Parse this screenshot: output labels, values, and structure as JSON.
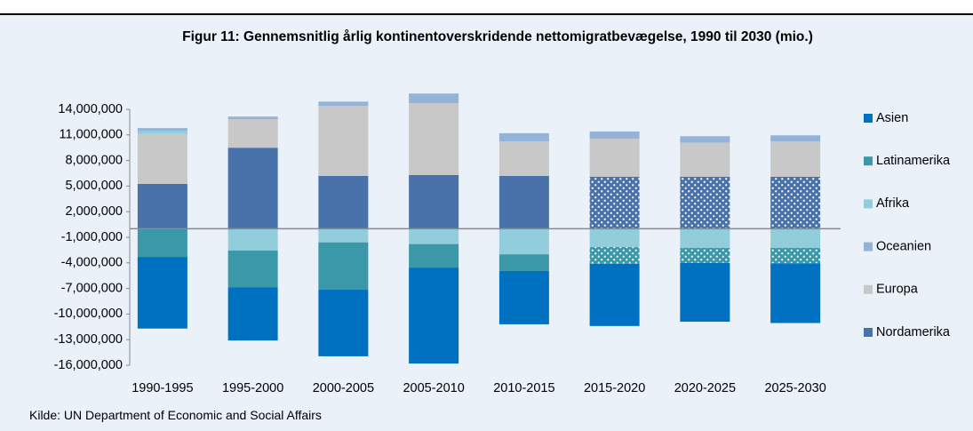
{
  "chart_data": {
    "type": "stacked_bar",
    "title": "Figur 11: Gennemsnitlig årlig kontinentoverskridende nettomigratbevægelse, 1990 til 2030 (mio.)",
    "source": "Kilde: UN Department of Economic and Social Affairs",
    "categories": [
      "1990-1995",
      "1995-2000",
      "2000-2005",
      "2005-2010",
      "2010-2015",
      "2015-2020",
      "2020-2025",
      "2025-2030"
    ],
    "series": [
      {
        "name": "Asien",
        "color": "#0070c0",
        "values": [
          -8400000,
          -6250000,
          -7800000,
          -11250000,
          -6250000,
          -7300000,
          -6900000,
          -7000000
        ]
      },
      {
        "name": "Latinamerika",
        "color": "#3b98a8",
        "pattern": "dots",
        "values": [
          -3300000,
          -4300000,
          -5550000,
          -2750000,
          -1950000,
          -1950000,
          -1750000,
          -1800000
        ]
      },
      {
        "name": "Afrika",
        "color": "#92cddc",
        "values": [
          400000,
          -2550000,
          -1600000,
          -1800000,
          -3000000,
          -2150000,
          -2250000,
          -2250000
        ]
      },
      {
        "name": "Oceanien",
        "color": "#95b3d7",
        "values": [
          300000,
          300000,
          500000,
          1150000,
          950000,
          850000,
          750000,
          700000
        ]
      },
      {
        "name": "Europa",
        "color": "#c8c8c8",
        "values": [
          5850000,
          3350000,
          8200000,
          8400000,
          4050000,
          4450000,
          4000000,
          4150000
        ]
      },
      {
        "name": "Nordamerika",
        "color": "#4a72aa",
        "pattern": "dots",
        "values": [
          5250000,
          9500000,
          6200000,
          6300000,
          6200000,
          6100000,
          6100000,
          6100000
        ]
      }
    ],
    "pattern_from": 5,
    "ylim": [
      -16000000,
      17000000
    ],
    "yticks": [
      {
        "value": -16000000,
        "label": "-16,000,000"
      },
      {
        "value": -13000000,
        "label": "-13,000,000"
      },
      {
        "value": -10000000,
        "label": "-10,000,000"
      },
      {
        "value": -7000000,
        "label": "-7,000,000"
      },
      {
        "value": -4000000,
        "label": "-4,000,000"
      },
      {
        "value": -1000000,
        "label": "-1,000,000"
      },
      {
        "value": 2000000,
        "label": "2,000,000"
      },
      {
        "value": 5000000,
        "label": "5,000,000"
      },
      {
        "value": 8000000,
        "label": "8,000,000"
      },
      {
        "value": 11000000,
        "label": "11,000,000"
      },
      {
        "value": 14000000,
        "label": "14,000,000"
      }
    ],
    "legend": "right"
  }
}
